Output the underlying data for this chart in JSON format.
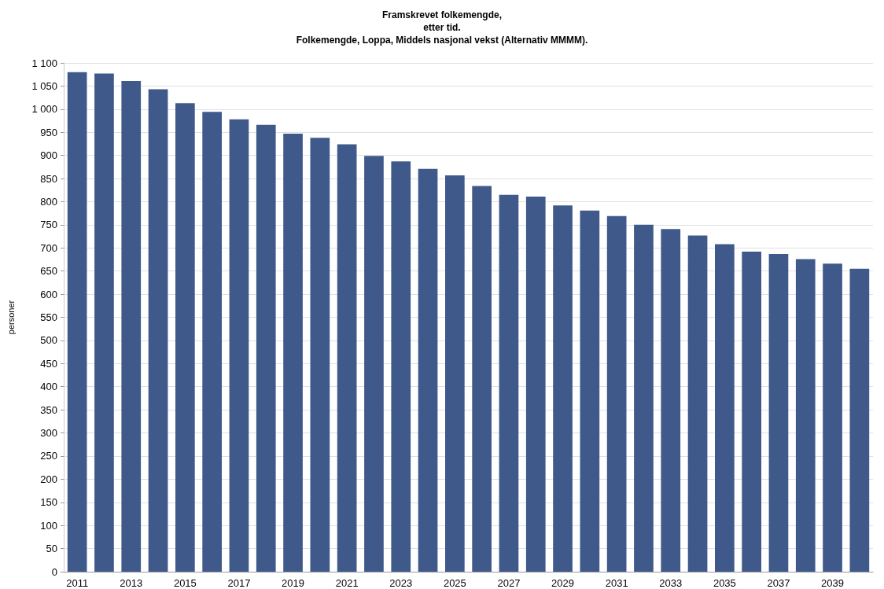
{
  "chart_data": {
    "type": "bar",
    "title": "Framskrevet folkemengde,\netter tid.\nFolkemengde, Loppa, Middels nasjonal vekst (Alternativ MMMM).",
    "ylabel": "personer",
    "categories": [
      "2011",
      null,
      "2013",
      null,
      "2015",
      null,
      "2017",
      null,
      "2019",
      null,
      "2021",
      null,
      "2023",
      null,
      "2025",
      null,
      "2027",
      null,
      "2029",
      null,
      "2031",
      null,
      "2033",
      null,
      "2035",
      null,
      "2037",
      null,
      "2039",
      null
    ],
    "values": [
      1080,
      1077,
      1061,
      1043,
      1013,
      994,
      978,
      966,
      947,
      938,
      924,
      899,
      887,
      871,
      857,
      834,
      815,
      811,
      792,
      781,
      769,
      750,
      741,
      727,
      708,
      692,
      687,
      676,
      666,
      655
    ],
    "color": "#3f5a8a",
    "ylim": [
      0,
      1100
    ],
    "yticks": [
      0,
      50,
      100,
      150,
      200,
      250,
      300,
      350,
      400,
      450,
      500,
      550,
      600,
      650,
      700,
      750,
      800,
      850,
      900,
      950,
      {
        "value": 1000,
        "label": "1 000"
      },
      {
        "value": 1050,
        "label": "1 050"
      },
      {
        "value": 1100,
        "label": "1 100"
      }
    ],
    "grid": "y"
  }
}
